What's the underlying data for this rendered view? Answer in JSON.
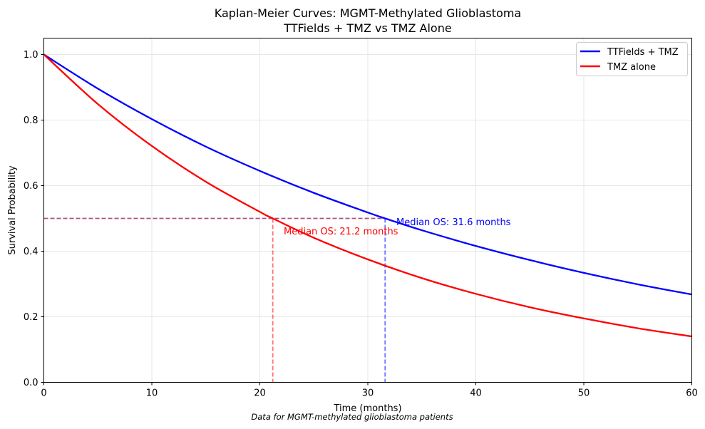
{
  "chart_data": {
    "type": "line",
    "title_line1": "Kaplan-Meier Curves: MGMT-Methylated Glioblastoma",
    "title_line2": "TTFields + TMZ vs TMZ Alone",
    "xlabel": "Time (months)",
    "ylabel": "Survival Probability",
    "footnote": "Data for MGMT-methylated glioblastoma patients",
    "xlim": [
      0,
      60
    ],
    "ylim": [
      0,
      1.05
    ],
    "xticks": [
      0,
      10,
      20,
      30,
      40,
      50,
      60
    ],
    "yticks": [
      0.0,
      0.2,
      0.4,
      0.6,
      0.8,
      1.0
    ],
    "xtick_labels": [
      "0",
      "10",
      "20",
      "30",
      "40",
      "50",
      "60"
    ],
    "ytick_labels": [
      "0.0",
      "0.2",
      "0.4",
      "0.6",
      "0.8",
      "1.0"
    ],
    "grid": true,
    "legend_position": "top-right",
    "series": [
      {
        "name": "TTFields + TMZ",
        "color": "#0000ff",
        "x": [
          0,
          5,
          10,
          15,
          20,
          25,
          30,
          31.6,
          35,
          40,
          45,
          50,
          55,
          60
        ],
        "y": [
          1.0,
          0.896,
          0.803,
          0.719,
          0.645,
          0.578,
          0.518,
          0.5,
          0.464,
          0.416,
          0.373,
          0.334,
          0.299,
          0.268
        ]
      },
      {
        "name": "TMZ alone",
        "color": "#ff0000",
        "x": [
          0,
          5,
          10,
          15,
          20,
          21.2,
          25,
          30,
          35,
          40,
          45,
          50,
          55,
          60
        ],
        "y": [
          1.0,
          0.849,
          0.721,
          0.612,
          0.52,
          0.5,
          0.441,
          0.375,
          0.318,
          0.27,
          0.229,
          0.195,
          0.165,
          0.14
        ]
      }
    ],
    "reference_line": {
      "y": 0.5,
      "style": "dashed",
      "color": "#a0336f"
    },
    "medians": [
      {
        "x": 31.6,
        "color": "#0000ff",
        "label": "Median OS: 31.6 months"
      },
      {
        "x": 21.2,
        "color": "#ff0000",
        "label": "Median OS: 21.2 months"
      }
    ]
  }
}
